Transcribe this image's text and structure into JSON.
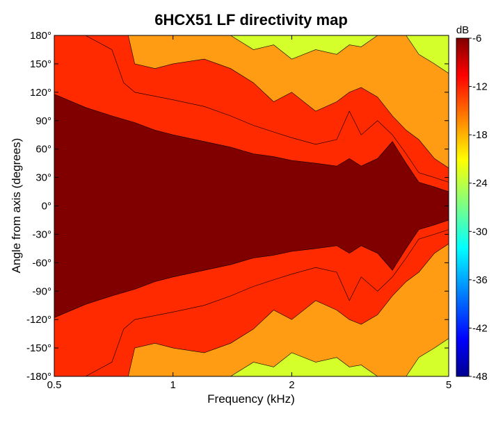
{
  "chart_data": {
    "type": "heatmap",
    "subtype": "filled-contour",
    "title": "6HCX51 LF directivity map",
    "xlabel": "Frequency (kHz)",
    "ylabel": "Angle from axis (degrees)",
    "x_scale": "log",
    "xlim": [
      0.5,
      5
    ],
    "ylim": [
      -180,
      180
    ],
    "x_ticks": [
      0.5,
      1,
      2,
      5
    ],
    "x_tick_labels": [
      "0.5",
      "1",
      "2",
      "5"
    ],
    "y_ticks": [
      180,
      150,
      120,
      90,
      60,
      30,
      0,
      -30,
      -60,
      -90,
      -120,
      -150,
      -180
    ],
    "y_tick_labels": [
      "180°",
      "150°",
      "120°",
      "90°",
      "60°",
      "30°",
      "0°",
      "-30°",
      "-60°",
      "-90°",
      "-120°",
      "-150°",
      "-180°"
    ],
    "colorbar": {
      "label": "dB",
      "range": [
        -48,
        -6
      ],
      "ticks": [
        -6,
        -12,
        -18,
        -24,
        -30,
        -36,
        -42,
        -48
      ],
      "tick_labels": [
        "-6",
        "-12",
        "-18",
        "-24",
        "-30",
        "-36",
        "-42",
        "-48"
      ],
      "colormap": "jet"
    },
    "contour_levels_db": [
      -6,
      -12,
      -18,
      -24,
      -30,
      -36
    ],
    "level_colors": {
      "above_-6": "#800000",
      "-12_to_-6": "#ff2a00",
      "-18_to_-12": "#ff9c14",
      "-24_to_-18": "#d4ff2a",
      "-30_to_-24": "#2affd0",
      "below_-30": "#0068ff"
    },
    "boundary_-6dB_angle_vs_frequency": [
      {
        "khz": 0.5,
        "deg": 118
      },
      {
        "khz": 0.6,
        "deg": 104
      },
      {
        "khz": 0.7,
        "deg": 95
      },
      {
        "khz": 0.8,
        "deg": 88
      },
      {
        "khz": 0.9,
        "deg": 80
      },
      {
        "khz": 1.0,
        "deg": 75
      },
      {
        "khz": 1.2,
        "deg": 68
      },
      {
        "khz": 1.4,
        "deg": 62
      },
      {
        "khz": 1.6,
        "deg": 55
      },
      {
        "khz": 1.8,
        "deg": 52
      },
      {
        "khz": 2.0,
        "deg": 48
      },
      {
        "khz": 2.3,
        "deg": 45
      },
      {
        "khz": 2.6,
        "deg": 42
      },
      {
        "khz": 2.8,
        "deg": 50
      },
      {
        "khz": 3.0,
        "deg": 42
      },
      {
        "khz": 3.3,
        "deg": 50
      },
      {
        "khz": 3.6,
        "deg": 68
      },
      {
        "khz": 3.9,
        "deg": 45
      },
      {
        "khz": 4.2,
        "deg": 25
      },
      {
        "khz": 4.6,
        "deg": 20
      },
      {
        "khz": 5.0,
        "deg": 15
      }
    ],
    "boundary_-12dB_angle_vs_frequency": [
      {
        "khz": 0.5,
        "deg": 180
      },
      {
        "khz": 0.6,
        "deg": 180
      },
      {
        "khz": 0.7,
        "deg": 165
      },
      {
        "khz": 0.75,
        "deg": 130
      },
      {
        "khz": 0.8,
        "deg": 120
      },
      {
        "khz": 1.0,
        "deg": 112
      },
      {
        "khz": 1.2,
        "deg": 105
      },
      {
        "khz": 1.4,
        "deg": 95
      },
      {
        "khz": 1.6,
        "deg": 85
      },
      {
        "khz": 1.8,
        "deg": 78
      },
      {
        "khz": 2.0,
        "deg": 72
      },
      {
        "khz": 2.3,
        "deg": 65
      },
      {
        "khz": 2.6,
        "deg": 70
      },
      {
        "khz": 2.8,
        "deg": 100
      },
      {
        "khz": 3.0,
        "deg": 75
      },
      {
        "khz": 3.3,
        "deg": 90
      },
      {
        "khz": 3.6,
        "deg": 75
      },
      {
        "khz": 3.9,
        "deg": 55
      },
      {
        "khz": 4.2,
        "deg": 35
      },
      {
        "khz": 4.6,
        "deg": 30
      },
      {
        "khz": 5.0,
        "deg": 25
      }
    ],
    "boundary_-18dB_angle_vs_frequency": [
      {
        "khz": 0.77,
        "deg": 180
      },
      {
        "khz": 0.8,
        "deg": 150
      },
      {
        "khz": 0.9,
        "deg": 145
      },
      {
        "khz": 1.0,
        "deg": 150
      },
      {
        "khz": 1.2,
        "deg": 155
      },
      {
        "khz": 1.4,
        "deg": 145
      },
      {
        "khz": 1.6,
        "deg": 130
      },
      {
        "khz": 1.8,
        "deg": 110
      },
      {
        "khz": 2.0,
        "deg": 120
      },
      {
        "khz": 2.3,
        "deg": 100
      },
      {
        "khz": 2.6,
        "deg": 110
      },
      {
        "khz": 2.8,
        "deg": 120
      },
      {
        "khz": 3.0,
        "deg": 125
      },
      {
        "khz": 3.3,
        "deg": 115
      },
      {
        "khz": 3.6,
        "deg": 95
      },
      {
        "khz": 3.9,
        "deg": 80
      },
      {
        "khz": 4.2,
        "deg": 70
      },
      {
        "khz": 4.6,
        "deg": 50
      },
      {
        "khz": 5.0,
        "deg": 40
      }
    ],
    "boundary_-24dB_angle_vs_frequency": [
      {
        "khz": 1.4,
        "deg": 180
      },
      {
        "khz": 1.6,
        "deg": 165
      },
      {
        "khz": 1.8,
        "deg": 170
      },
      {
        "khz": 2.0,
        "deg": 155
      },
      {
        "khz": 2.3,
        "deg": 165
      },
      {
        "khz": 2.6,
        "deg": 160
      },
      {
        "khz": 2.8,
        "deg": 170
      },
      {
        "khz": 3.0,
        "deg": 168
      },
      {
        "khz": 3.3,
        "deg": 180
      },
      {
        "khz": 3.9,
        "deg": 180
      },
      {
        "khz": 4.2,
        "deg": 160
      },
      {
        "khz": 4.6,
        "deg": 150
      },
      {
        "khz": 5.0,
        "deg": 140
      }
    ]
  }
}
